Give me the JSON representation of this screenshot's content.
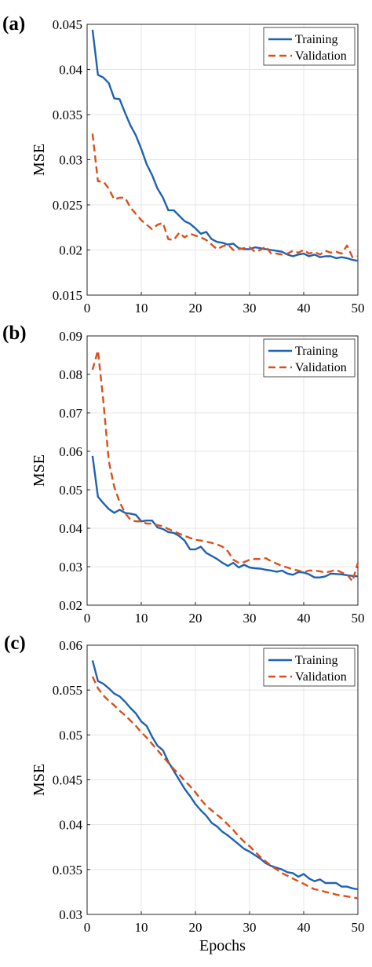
{
  "colors": {
    "training": "#1f62b1",
    "validation": "#d8501c"
  },
  "chart_data": [
    {
      "panel": "(a)",
      "type": "line",
      "ylabel": "MSE",
      "xlabel": "",
      "xlim": [
        0,
        50
      ],
      "ylim": [
        0.015,
        0.045
      ],
      "xticks": [
        "0",
        "10",
        "20",
        "30",
        "40",
        "50"
      ],
      "yticks": [
        "0.015",
        "0.02",
        "0.025",
        "0.03",
        "0.035",
        "0.04",
        "0.045"
      ],
      "grid": true,
      "legend": "top-right",
      "series": [
        {
          "name": "Training",
          "style": "solid",
          "x": [
            1,
            2,
            3,
            4,
            5,
            6,
            7,
            8,
            9,
            10,
            11,
            12,
            13,
            14,
            15,
            16,
            17,
            18,
            19,
            20,
            21,
            22,
            23,
            24,
            25,
            26,
            27,
            28,
            29,
            30,
            31,
            32,
            33,
            34,
            35,
            36,
            37,
            38,
            39,
            40,
            41,
            42,
            43,
            44,
            45,
            46,
            47,
            48,
            49,
            50
          ],
          "values": [
            0.0444,
            0.0394,
            0.0391,
            0.0385,
            0.0368,
            0.0367,
            0.0352,
            0.0338,
            0.0327,
            0.0312,
            0.0295,
            0.0283,
            0.0268,
            0.0258,
            0.0244,
            0.0244,
            0.0238,
            0.0232,
            0.0229,
            0.0224,
            0.0218,
            0.022,
            0.0212,
            0.0209,
            0.0208,
            0.0206,
            0.0207,
            0.0202,
            0.0201,
            0.0201,
            0.0203,
            0.0202,
            0.0201,
            0.02,
            0.0199,
            0.0198,
            0.0195,
            0.0193,
            0.0195,
            0.0196,
            0.0193,
            0.0195,
            0.0192,
            0.0193,
            0.0193,
            0.0191,
            0.0192,
            0.0191,
            0.0189,
            0.0188
          ]
        },
        {
          "name": "Validation",
          "style": "dashed",
          "x": [
            1,
            2,
            3,
            4,
            5,
            6,
            7,
            8,
            9,
            10,
            11,
            12,
            13,
            14,
            15,
            16,
            17,
            18,
            19,
            20,
            21,
            22,
            23,
            24,
            25,
            26,
            27,
            28,
            29,
            30,
            31,
            32,
            33,
            34,
            35,
            36,
            37,
            38,
            39,
            40,
            41,
            42,
            43,
            44,
            45,
            46,
            47,
            48,
            49,
            50
          ],
          "values": [
            0.0329,
            0.0276,
            0.0276,
            0.0268,
            0.0256,
            0.0258,
            0.0258,
            0.0247,
            0.024,
            0.0233,
            0.0228,
            0.0223,
            0.0228,
            0.023,
            0.0212,
            0.0211,
            0.0219,
            0.0214,
            0.0218,
            0.0216,
            0.0214,
            0.0211,
            0.0206,
            0.0201,
            0.0204,
            0.0206,
            0.02,
            0.0201,
            0.0202,
            0.0203,
            0.0198,
            0.02,
            0.0204,
            0.0196,
            0.0196,
            0.0195,
            0.0196,
            0.0199,
            0.0197,
            0.02,
            0.0196,
            0.0198,
            0.0195,
            0.0199,
            0.0197,
            0.0198,
            0.0196,
            0.0205,
            0.0192,
            0.0193
          ]
        }
      ]
    },
    {
      "panel": "(b)",
      "type": "line",
      "ylabel": "MSE",
      "xlabel": "",
      "xlim": [
        0,
        50
      ],
      "ylim": [
        0.02,
        0.09
      ],
      "xticks": [
        "0",
        "10",
        "20",
        "30",
        "40",
        "50"
      ],
      "yticks": [
        "0.02",
        "0.03",
        "0.04",
        "0.05",
        "0.06",
        "0.07",
        "0.08",
        "0.09"
      ],
      "grid": true,
      "legend": "top-right",
      "series": [
        {
          "name": "Training",
          "style": "solid",
          "x": [
            1,
            2,
            3,
            4,
            5,
            6,
            7,
            8,
            9,
            10,
            11,
            12,
            13,
            14,
            15,
            16,
            17,
            18,
            19,
            20,
            21,
            22,
            23,
            24,
            25,
            26,
            27,
            28,
            29,
            30,
            31,
            32,
            33,
            34,
            35,
            36,
            37,
            38,
            39,
            40,
            41,
            42,
            43,
            44,
            45,
            46,
            47,
            48,
            49,
            50
          ],
          "values": [
            0.0588,
            0.0482,
            0.0465,
            0.045,
            0.044,
            0.0448,
            0.044,
            0.0438,
            0.0435,
            0.0418,
            0.042,
            0.042,
            0.0402,
            0.0398,
            0.039,
            0.0388,
            0.038,
            0.0368,
            0.0345,
            0.0345,
            0.0352,
            0.0336,
            0.0328,
            0.032,
            0.031,
            0.0302,
            0.031,
            0.0298,
            0.0305,
            0.0298,
            0.0296,
            0.0295,
            0.0292,
            0.029,
            0.0287,
            0.029,
            0.0282,
            0.0279,
            0.0286,
            0.0285,
            0.028,
            0.0272,
            0.0272,
            0.0275,
            0.0282,
            0.0281,
            0.028,
            0.0278,
            0.0276,
            0.0275
          ]
        },
        {
          "name": "Validation",
          "style": "dashed",
          "x": [
            1,
            2,
            3,
            4,
            5,
            6,
            7,
            8,
            9,
            10,
            11,
            12,
            13,
            14,
            15,
            16,
            17,
            18,
            19,
            20,
            21,
            22,
            23,
            24,
            25,
            26,
            27,
            28,
            29,
            30,
            31,
            32,
            33,
            34,
            35,
            36,
            37,
            38,
            39,
            40,
            41,
            42,
            43,
            44,
            45,
            46,
            47,
            48,
            49,
            50
          ],
          "values": [
            0.0812,
            0.0862,
            0.073,
            0.0575,
            0.0508,
            0.0468,
            0.044,
            0.0422,
            0.0418,
            0.0418,
            0.0412,
            0.0412,
            0.0408,
            0.0405,
            0.0398,
            0.0392,
            0.0386,
            0.038,
            0.0375,
            0.037,
            0.0368,
            0.0365,
            0.0362,
            0.0358,
            0.0352,
            0.034,
            0.0318,
            0.031,
            0.0312,
            0.0318,
            0.032,
            0.032,
            0.0322,
            0.0314,
            0.0308,
            0.0302,
            0.0298,
            0.0293,
            0.029,
            0.0286,
            0.029,
            0.029,
            0.0288,
            0.0285,
            0.0288,
            0.0292,
            0.0285,
            0.028,
            0.0262,
            0.031
          ]
        }
      ]
    },
    {
      "panel": "(c)",
      "type": "line",
      "ylabel": "MSE",
      "xlabel": "Epochs",
      "xlim": [
        0,
        50
      ],
      "ylim": [
        0.03,
        0.06
      ],
      "xticks": [
        "0",
        "10",
        "20",
        "30",
        "40",
        "50"
      ],
      "yticks": [
        "0.03",
        "0.035",
        "0.04",
        "0.045",
        "0.05",
        "0.055",
        "0.06"
      ],
      "grid": true,
      "legend": "top-right",
      "series": [
        {
          "name": "Training",
          "style": "solid",
          "x": [
            1,
            2,
            3,
            4,
            5,
            6,
            7,
            8,
            9,
            10,
            11,
            12,
            13,
            14,
            15,
            16,
            17,
            18,
            19,
            20,
            21,
            22,
            23,
            24,
            25,
            26,
            27,
            28,
            29,
            30,
            31,
            32,
            33,
            34,
            35,
            36,
            37,
            38,
            39,
            40,
            41,
            42,
            43,
            44,
            45,
            46,
            47,
            48,
            49,
            50
          ],
          "values": [
            0.0583,
            0.056,
            0.0557,
            0.0552,
            0.0546,
            0.0543,
            0.0537,
            0.053,
            0.0524,
            0.0515,
            0.051,
            0.0498,
            0.0488,
            0.0483,
            0.047,
            0.046,
            0.045,
            0.044,
            0.0432,
            0.0423,
            0.0416,
            0.041,
            0.0402,
            0.0398,
            0.0392,
            0.0388,
            0.0383,
            0.0378,
            0.0373,
            0.037,
            0.0366,
            0.0362,
            0.0357,
            0.0354,
            0.0352,
            0.035,
            0.0347,
            0.0346,
            0.0342,
            0.0345,
            0.034,
            0.0337,
            0.0339,
            0.0335,
            0.0335,
            0.0335,
            0.0331,
            0.0331,
            0.0329,
            0.0328
          ]
        },
        {
          "name": "Validation",
          "style": "dashed",
          "x": [
            1,
            2,
            3,
            4,
            5,
            6,
            7,
            8,
            9,
            10,
            11,
            12,
            13,
            14,
            15,
            16,
            17,
            18,
            19,
            20,
            21,
            22,
            23,
            24,
            25,
            26,
            27,
            28,
            29,
            30,
            31,
            32,
            33,
            34,
            35,
            36,
            37,
            38,
            39,
            40,
            41,
            42,
            43,
            44,
            45,
            46,
            47,
            48,
            49,
            50
          ],
          "values": [
            0.0565,
            0.0552,
            0.0544,
            0.0538,
            0.0533,
            0.0527,
            0.0522,
            0.0516,
            0.051,
            0.0503,
            0.0497,
            0.049,
            0.0483,
            0.0476,
            0.0469,
            0.0462,
            0.0456,
            0.0449,
            0.0443,
            0.0436,
            0.0428,
            0.0421,
            0.0416,
            0.0411,
            0.0406,
            0.04,
            0.0394,
            0.0387,
            0.0381,
            0.0376,
            0.037,
            0.0364,
            0.0359,
            0.0354,
            0.035,
            0.0346,
            0.0343,
            0.034,
            0.0337,
            0.0334,
            0.0331,
            0.0328,
            0.0327,
            0.0325,
            0.0324,
            0.0322,
            0.0321,
            0.032,
            0.0319,
            0.0318
          ]
        }
      ]
    }
  ]
}
